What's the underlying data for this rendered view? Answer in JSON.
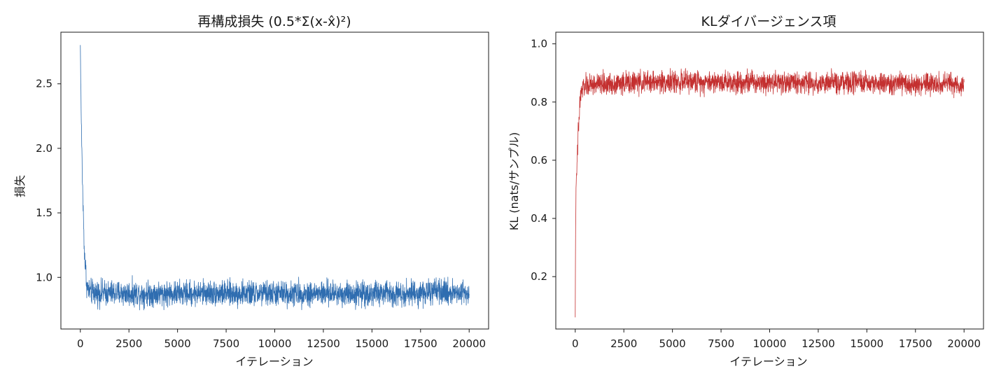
{
  "chart_data": [
    {
      "type": "line",
      "title": "再構成損失 (0.5*Σ(x-x̂)²)",
      "xlabel": "イテレーション",
      "ylabel": "損失",
      "xlim": [
        -1000,
        21000
      ],
      "ylim": [
        0.6,
        2.9
      ],
      "xticks": [
        0,
        2500,
        5000,
        7500,
        10000,
        12500,
        15000,
        17500,
        20000
      ],
      "xtick_labels": [
        "0",
        "2500",
        "5000",
        "7500",
        "10000",
        "12500",
        "15000",
        "17500",
        "20000"
      ],
      "yticks": [
        1.0,
        1.5,
        2.0,
        2.5
      ],
      "ytick_labels": [
        "1.0",
        "1.5",
        "2.0",
        "2.5"
      ],
      "grid": false,
      "color": "#2f6db0",
      "series": [
        {
          "x": [
            0,
            20,
            50,
            100,
            150,
            200,
            250,
            300,
            350,
            400,
            500,
            600,
            800,
            1000,
            2500,
            5000,
            6500,
            7500,
            10000,
            12500,
            15000,
            17500,
            18500,
            20000
          ],
          "y": [
            2.8,
            2.55,
            2.2,
            1.8,
            1.5,
            1.25,
            1.1,
            1.0,
            0.93,
            0.9,
            0.89,
            0.885,
            0.88,
            0.88,
            0.875,
            0.875,
            0.88,
            0.875,
            0.875,
            0.875,
            0.875,
            0.88,
            0.885,
            0.885
          ],
          "noise": [
            0.0,
            0.05,
            0.08,
            0.1,
            0.1,
            0.1,
            0.1,
            0.1,
            0.09,
            0.09,
            0.09,
            0.09,
            0.09,
            0.09,
            0.09,
            0.09,
            0.09,
            0.09,
            0.09,
            0.09,
            0.09,
            0.09,
            0.09,
            0.09
          ]
        }
      ]
    },
    {
      "type": "line",
      "title": "KLダイバージェンス項",
      "xlabel": "イテレーション",
      "ylabel": "KL (nats/サンプル)",
      "xlim": [
        -1000,
        21000
      ],
      "ylim": [
        0.02,
        1.04
      ],
      "xticks": [
        0,
        2500,
        5000,
        7500,
        10000,
        12500,
        15000,
        17500,
        20000
      ],
      "xtick_labels": [
        "0",
        "2500",
        "5000",
        "7500",
        "10000",
        "12500",
        "15000",
        "17500",
        "20000"
      ],
      "yticks": [
        0.2,
        0.4,
        0.6,
        0.8,
        1.0
      ],
      "ytick_labels": [
        "0.2",
        "0.4",
        "0.6",
        "0.8",
        "1.0"
      ],
      "grid": false,
      "color": "#c43030",
      "series": [
        {
          "x": [
            0,
            20,
            50,
            100,
            150,
            200,
            250,
            300,
            400,
            500,
            1000,
            2500,
            4500,
            5000,
            7500,
            10000,
            12500,
            15000,
            17500,
            20000
          ],
          "y": [
            0.06,
            0.4,
            0.5,
            0.6,
            0.68,
            0.75,
            0.8,
            0.83,
            0.85,
            0.855,
            0.86,
            0.865,
            0.87,
            0.87,
            0.87,
            0.87,
            0.865,
            0.865,
            0.86,
            0.86
          ],
          "noise": [
            0.0,
            0.03,
            0.04,
            0.05,
            0.05,
            0.05,
            0.05,
            0.04,
            0.035,
            0.035,
            0.035,
            0.035,
            0.035,
            0.035,
            0.035,
            0.035,
            0.035,
            0.035,
            0.035,
            0.035
          ]
        }
      ]
    }
  ]
}
